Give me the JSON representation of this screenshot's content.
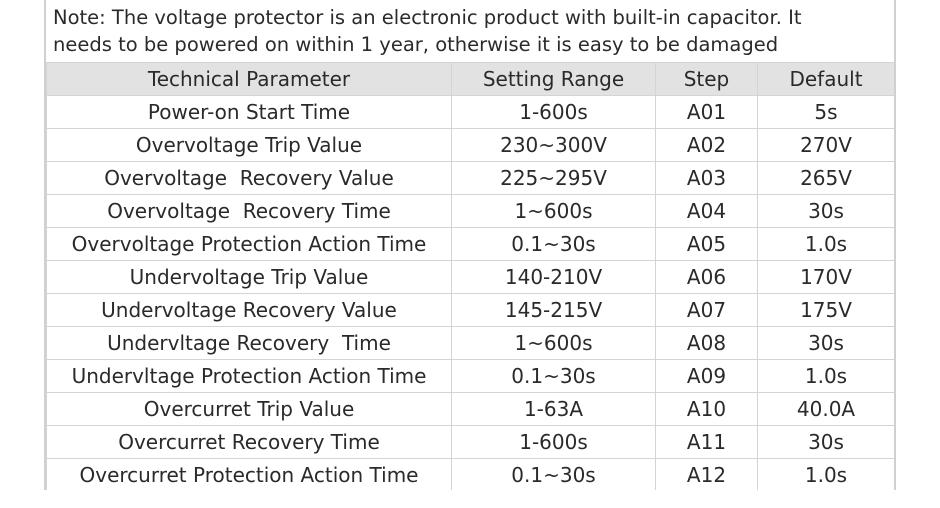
{
  "note": {
    "lines": [
      "Note: The voltage protector is an electronic product with built-in capacitor. It",
      "needs to be powered on within 1 year, otherwise it is easy to be damaged"
    ]
  },
  "table": {
    "header": [
      "Technical Parameter",
      "Setting Range",
      "Step",
      "Default"
    ],
    "rows": [
      [
        "Power-on Start Time",
        "1-600s",
        "A01",
        "5s"
      ],
      [
        "Overvoltage Trip Value",
        "230~300V",
        "A02",
        "270V"
      ],
      [
        "Overvoltage  Recovery Value",
        "225~295V",
        "A03",
        "265V"
      ],
      [
        "Overvoltage  Recovery Time",
        "1~600s",
        "A04",
        "30s"
      ],
      [
        "Overvoltage Protection Action Time",
        "0.1~30s",
        "A05",
        "1.0s"
      ],
      [
        "Undervoltage Trip Value",
        "140-210V",
        "A06",
        "170V"
      ],
      [
        "Undervoltage Recovery Value",
        "145-215V",
        "A07",
        "175V"
      ],
      [
        "Undervltage Recovery  Time",
        "1~600s",
        "A08",
        "30s"
      ],
      [
        "Undervltage Protection Action Time",
        "0.1~30s",
        "A09",
        "1.0s"
      ],
      [
        "Overcurret Trip Value",
        "1-63A",
        "A10",
        "40.0A"
      ],
      [
        "Overcurret Recovery Time",
        "1-600s",
        "A11",
        "30s"
      ],
      [
        "Overcurret Protection Action Time",
        "0.1~30s",
        "A12",
        "1.0s"
      ]
    ]
  }
}
